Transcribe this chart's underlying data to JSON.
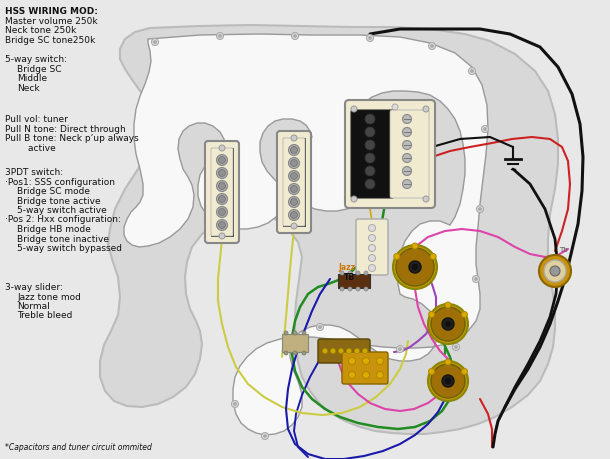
{
  "bg_color": "#e8e8e8",
  "body_color": "#d8d8d8",
  "body_outline": "#bbbbbb",
  "pickguard_color": "#f8f8f8",
  "title_lines": [
    "HSS WIRING MOD:",
    "Master volume 250k",
    "Neck tone 250k",
    "Bridge SC tone250k"
  ],
  "switch_lines": [
    "5-way switch:",
    "   Bridge SC",
    "   Middle",
    "   Neck"
  ],
  "pull_lines": [
    "Pull vol: tuner",
    "Pull N tone: Direct through",
    "Pull B tone: Neck p’up always",
    "        active"
  ],
  "pdt_lines": [
    "3PDT switch:",
    "·Pos1: SSS configuration",
    "   Bridge SC mode",
    "   Bridge tone active",
    "   5-way switch active",
    "·Pos 2: Hxx configuration:",
    "   Bridge HB mode",
    "   Bridge tone inactive",
    "   5-way switch bypassed"
  ],
  "slider_lines": [
    "3-way slider:",
    "   Jazz tone mod",
    "   Normal",
    "   Treble bleed"
  ],
  "footer": "*Capacitors and tuner circuit ommited",
  "text_color": "#111111",
  "pickup_cream": "#f0ead0",
  "pickup_black": "#111111",
  "knob_gold": "#c8920a",
  "knob_dark": "#a07008",
  "jack_gold": "#c8920a"
}
